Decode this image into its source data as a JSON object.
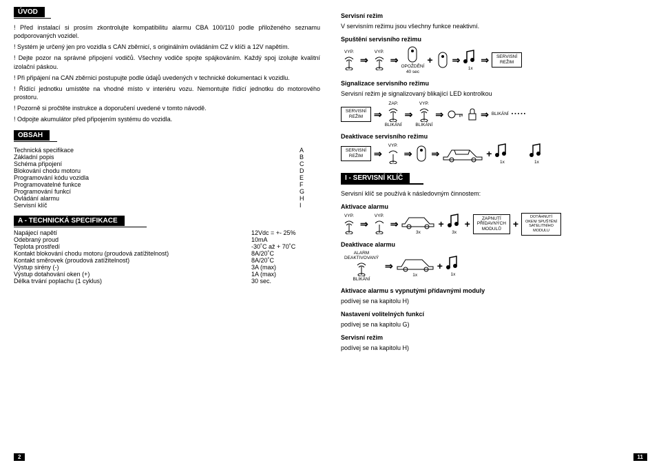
{
  "left": {
    "header_uvod": "ÚVOD",
    "p1": "! Před instalací si prosím zkontrolujte kompatibilitu alarmu CBA 100/110  podle přiloženého seznamu podporovaných vozidel.",
    "p2": "! Systém je určený jen pro vozidla s CAN zběrnicí, s originálním ovládáním CZ v klíči a 12V napětím.",
    "p3": "! Dejte pozor na správné připojení vodičů. Všechny vodiče spojte spájkováním. Každý spoj izolujte kvalitní izolační páskou.",
    "p4": "! Při připájení na CAN zběrnici postupujte podle údajů uvedených v technické dokumentaci k vozidlu.",
    "p5": "! Řídící jednotku umístěte na vhodné místo v interiéru vozu. Nemontujte řídící jednotku do motorového prostoru.",
    "p6": "! Pozorně si pročtěte instrukce a doporučení uvedené v tomto návodě.",
    "p7": "! Odpojte akumulátor před připojením systému do vozidla.",
    "header_obsah": "OBSAH",
    "toc": [
      {
        "label": "Technická specifikace",
        "code": "A"
      },
      {
        "label": "Základní popis",
        "code": "B"
      },
      {
        "label": "Schéma připojení",
        "code": "C"
      },
      {
        "label": "Blokování chodu motoru",
        "code": "D"
      },
      {
        "label": "Programování kódu vozidla",
        "code": "E"
      },
      {
        "label": "Programovatelné funkce",
        "code": "F"
      },
      {
        "label": "Programování funkcí",
        "code": "G"
      },
      {
        "label": "Ovládání alarmu",
        "code": "H"
      },
      {
        "label": "Servisní klíč",
        "code": "I"
      }
    ],
    "header_spec": "A - TECHNICKÁ SPECIFIKACE",
    "spec": [
      {
        "label": "Napájecí napětí",
        "val": "12Vdc = +- 25%"
      },
      {
        "label": "Odebraný proud",
        "val": "10mA"
      },
      {
        "label": "Teplota prostředí",
        "val": "-30˚C až + 70˚C"
      },
      {
        "label": "Kontakt blokování chodu motoru (proudová zatížitelnost)",
        "val": "8A/20˚C"
      },
      {
        "label": "Kontakt směrovek (proudová zatížitelnost)",
        "val": "8A/20˚C"
      },
      {
        "label": "Výstup sirény (-)",
        "val": "3A (max)"
      },
      {
        "label": "Výstup dotahování oken (+)",
        "val": "1A (max)"
      },
      {
        "label": "Délka trvání poplachu (1 cyklus)",
        "val": "30 sec."
      }
    ],
    "page_num": "2"
  },
  "right": {
    "h_serv_rezim": "Servisní režim",
    "p_serv": "V servisním režimu jsou všechny funkce neaktivní.",
    "h_spusteni": "Spuštění servisního režimu",
    "vyp": "VYP.",
    "zap": "ZAP.",
    "opozd": "OPOŽDĚNÍ",
    "sec40": "40 sec",
    "x1": "1x",
    "x3": "3x",
    "serv_rezim_box": "SERVISNÍ REŽIM",
    "h_signal": "Signalizace servisního režimu",
    "p_signal": "Servisní režim je signalizovaný blikající LED kontrolkou",
    "blikani": "BLIKÁNÍ",
    "h_deakt": "Deaktivace servisního režimu",
    "header_klic": "I - SERVISNÍ KLÍČ",
    "p_klic": "Servisní klíč se používá k následovným činnostem:",
    "h_akt_alarm": "Aktivace alarmu",
    "zapnuti_mod": "ZAPNUTÍ PŘÍDAVNÝCH MODULŮ",
    "dotah": "DOTÁHNUTÍ OKEN/ SPUŠTĚNÍ SATELITNÍHO MODULU",
    "h_deakt_alarm": "Deaktivace alarmu",
    "alarm_deakt": "ALARM DEAKTIVOVANÝ",
    "h_akt_vyp": "Aktivace alarmu s vypnutými přídavnými moduly",
    "podivej_h": "podívej se na kapitolu H)",
    "h_nast": "Nastavení volitelných funkcí",
    "podivej_g": "podívej se na kapitolu G)",
    "page_num": "11"
  }
}
